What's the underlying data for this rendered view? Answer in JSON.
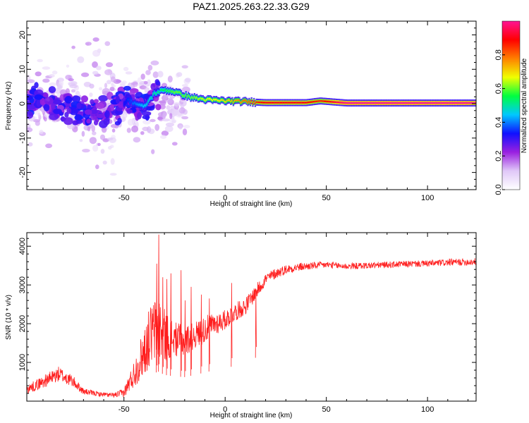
{
  "chart_data": [
    {
      "type": "heatmap",
      "title": "PAZ1.2025.263.22.33.G29",
      "xlabel": "Height of straight line (km)",
      "ylabel": "Frequency (Hz)",
      "xlim": [
        -98,
        124
      ],
      "ylim": [
        -25,
        24
      ],
      "xticks": [
        -50,
        0,
        50,
        100
      ],
      "yticks": [
        -20,
        -10,
        0,
        10,
        20
      ],
      "colorbar": {
        "label": "Normalized spectral amplitude",
        "range": [
          0,
          1
        ],
        "ticks": [
          "0.0",
          "0.2",
          "0.4",
          "0.6",
          "0.8"
        ],
        "tick_values": [
          0.0,
          0.2,
          0.4,
          0.6,
          0.8
        ],
        "colors": [
          "#ffffff",
          "#e0c8f8",
          "#9a20e0",
          "#1010ff",
          "#00c8ff",
          "#00ff40",
          "#f0ff00",
          "#ff8000",
          "#ff0000",
          "#ff1493"
        ]
      },
      "ridge": [
        {
          "x": -95,
          "f": 1.5,
          "amp": 0.3
        },
        {
          "x": -85,
          "f": 0.0,
          "amp": 0.35
        },
        {
          "x": -75,
          "f": -1.5,
          "amp": 0.3
        },
        {
          "x": -65,
          "f": -3.0,
          "amp": 0.25
        },
        {
          "x": -55,
          "f": -2.0,
          "amp": 0.25
        },
        {
          "x": -48,
          "f": 1.0,
          "amp": 0.35
        },
        {
          "x": -40,
          "f": -1.0,
          "amp": 0.45
        },
        {
          "x": -35,
          "f": 3.0,
          "amp": 0.5
        },
        {
          "x": -30,
          "f": 4.0,
          "amp": 0.55
        },
        {
          "x": -25,
          "f": 3.5,
          "amp": 0.6
        },
        {
          "x": -18,
          "f": 2.0,
          "amp": 0.6
        },
        {
          "x": -10,
          "f": 1.2,
          "amp": 0.65
        },
        {
          "x": 0,
          "f": 0.8,
          "amp": 0.7
        },
        {
          "x": 10,
          "f": 0.6,
          "amp": 0.8
        },
        {
          "x": 20,
          "f": 0.3,
          "amp": 0.9
        },
        {
          "x": 40,
          "f": 0.3,
          "amp": 0.9
        },
        {
          "x": 47,
          "f": 0.8,
          "amp": 0.85
        },
        {
          "x": 60,
          "f": 0.2,
          "amp": 1.0
        },
        {
          "x": 124,
          "f": 0.2,
          "amp": 1.0
        }
      ]
    },
    {
      "type": "line",
      "xlabel": "Height of straight line (km)",
      "ylabel": "SNR (10 * v/v)",
      "xlim": [
        -98,
        124
      ],
      "ylim": [
        0,
        4350
      ],
      "xticks": [
        -50,
        0,
        50,
        100
      ],
      "yticks": [
        1000,
        2000,
        3000,
        4000
      ],
      "line_color": "#ff1e1e",
      "series": [
        {
          "name": "SNR",
          "x": [
            -98,
            -90,
            -82,
            -75,
            -70,
            -62,
            -55,
            -50,
            -45,
            -40,
            -37,
            -33,
            -30,
            -25,
            -20,
            -15,
            -10,
            -5,
            0,
            5,
            10,
            15,
            20,
            25,
            30,
            35,
            40,
            45,
            50,
            60,
            70,
            80,
            90,
            100,
            110,
            124
          ],
          "y": [
            300,
            500,
            700,
            500,
            250,
            180,
            150,
            220,
            700,
            1300,
            1700,
            1900,
            1700,
            1600,
            1550,
            1700,
            1850,
            2000,
            2100,
            2300,
            2450,
            2800,
            3150,
            3300,
            3400,
            3450,
            3480,
            3500,
            3520,
            3480,
            3500,
            3520,
            3540,
            3550,
            3580,
            3600
          ],
          "noise": [
            120,
            160,
            200,
            150,
            80,
            60,
            60,
            120,
            350,
            650,
            800,
            900,
            700,
            450,
            400,
            350,
            350,
            300,
            260,
            240,
            220,
            200,
            160,
            140,
            120,
            110,
            100,
            95,
            90,
            85,
            85,
            85,
            85,
            85,
            90,
            95
          ],
          "spikes": [
            {
              "x": -33,
              "y": 4300
            },
            {
              "x": -34,
              "y": 3550
            },
            {
              "x": -31,
              "y": 3200
            },
            {
              "x": -29,
              "y": 3150
            },
            {
              "x": -27,
              "y": 3300
            },
            {
              "x": -22,
              "y": 3380
            },
            {
              "x": -20,
              "y": 2600
            },
            {
              "x": -17,
              "y": 2950
            },
            {
              "x": -12,
              "y": 2750
            },
            {
              "x": -8,
              "y": 2650
            },
            {
              "x": 3,
              "y": 3050
            },
            {
              "x": 15,
              "y": 2900
            }
          ]
        }
      ]
    }
  ]
}
